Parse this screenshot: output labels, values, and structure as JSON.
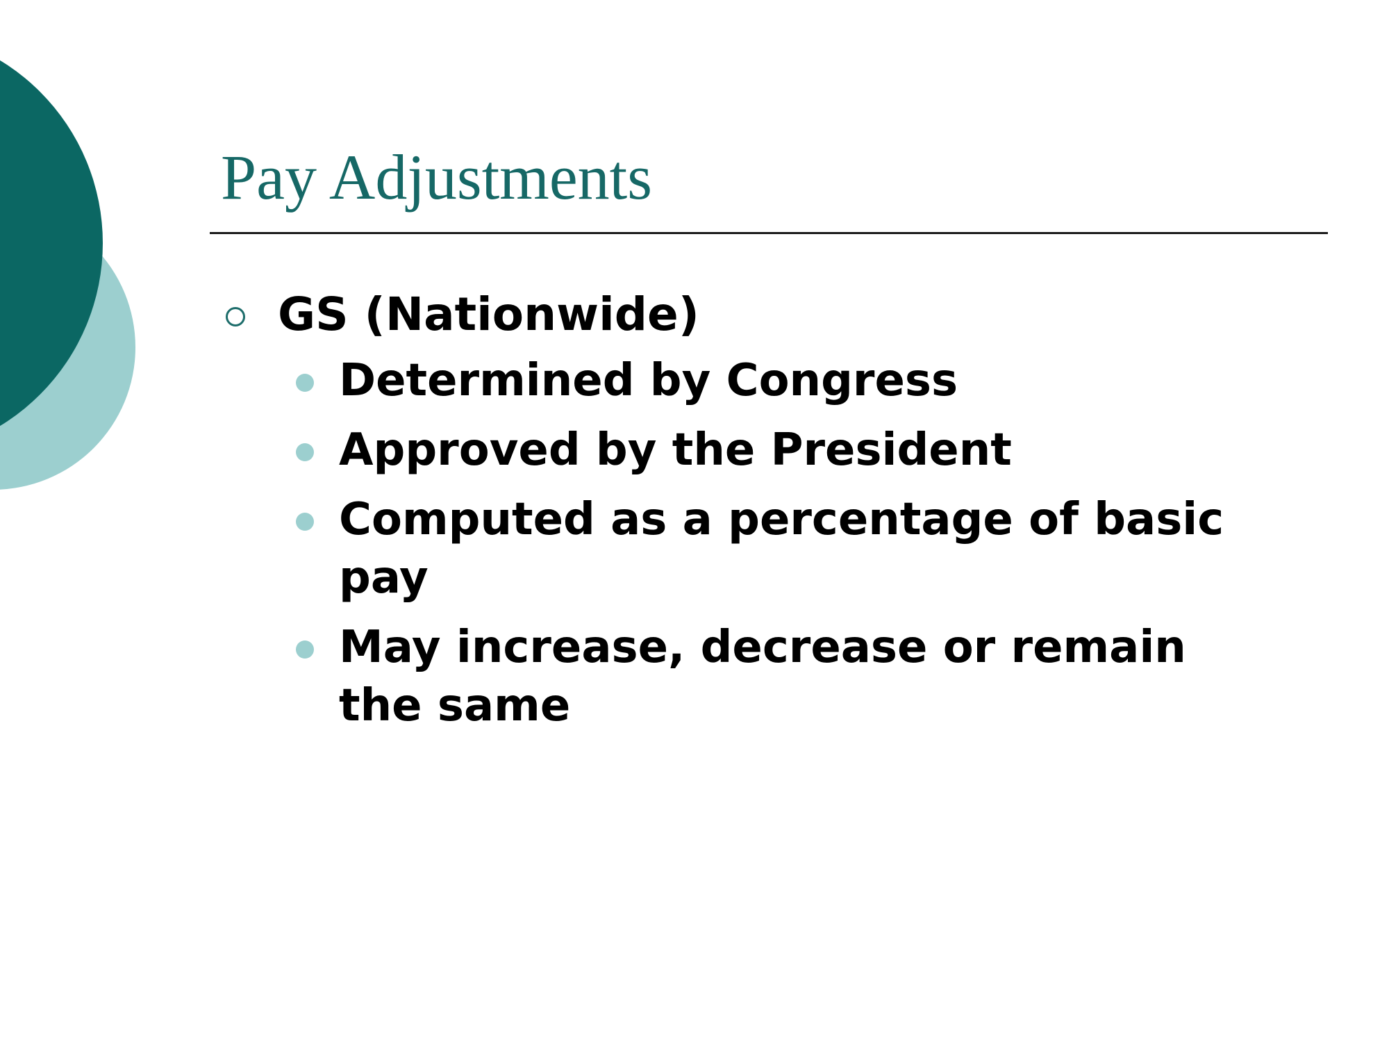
{
  "colors": {
    "dark_teal": "#0b6763",
    "light_teal": "#9ccfcf",
    "title": "#166866",
    "rule": "#1a1a1a",
    "text": "#000000"
  },
  "slide": {
    "title": "Pay Adjustments",
    "bullet": {
      "icon": "ring-bullet-icon",
      "text": "GS (Nationwide)",
      "sub_icon": "dot-bullet-icon",
      "sub_items": [
        {
          "text": "Determined by Congress"
        },
        {
          "text": "Approved by the President"
        },
        {
          "text": "Computed as a percentage of basic pay"
        },
        {
          "text": "May increase, decrease or remain the same"
        }
      ]
    }
  }
}
